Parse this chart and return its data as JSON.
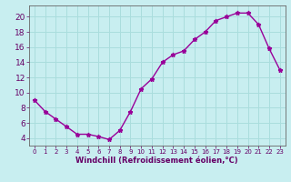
{
  "x": [
    0,
    1,
    2,
    3,
    4,
    5,
    6,
    7,
    8,
    9,
    10,
    11,
    12,
    13,
    14,
    15,
    16,
    17,
    18,
    19,
    20,
    21,
    22,
    23
  ],
  "y": [
    9,
    7.5,
    6.5,
    5.5,
    4.5,
    4.5,
    4.2,
    3.8,
    5,
    7.5,
    10.5,
    11.8,
    14,
    15,
    15.5,
    17,
    18,
    19.5,
    20,
    20.5,
    20.5,
    19,
    15.8,
    13
  ],
  "line_color": "#990099",
  "marker": "*",
  "bg_color": "#c8eef0",
  "grid_color": "#aadddd",
  "xlabel": "Windchill (Refroidissement éolien,°C)",
  "xlim": [
    -0.5,
    23.5
  ],
  "ylim": [
    3,
    21.5
  ],
  "yticks": [
    4,
    6,
    8,
    10,
    12,
    14,
    16,
    18,
    20
  ],
  "xticks": [
    0,
    1,
    2,
    3,
    4,
    5,
    6,
    7,
    8,
    9,
    10,
    11,
    12,
    13,
    14,
    15,
    16,
    17,
    18,
    19,
    20,
    21,
    22,
    23
  ],
  "label_color": "#660066",
  "axis_color": "#666666",
  "tick_color": "#660066",
  "xlabel_fontsize": 6.0,
  "ytick_fontsize": 6.5,
  "xtick_fontsize": 5.0
}
